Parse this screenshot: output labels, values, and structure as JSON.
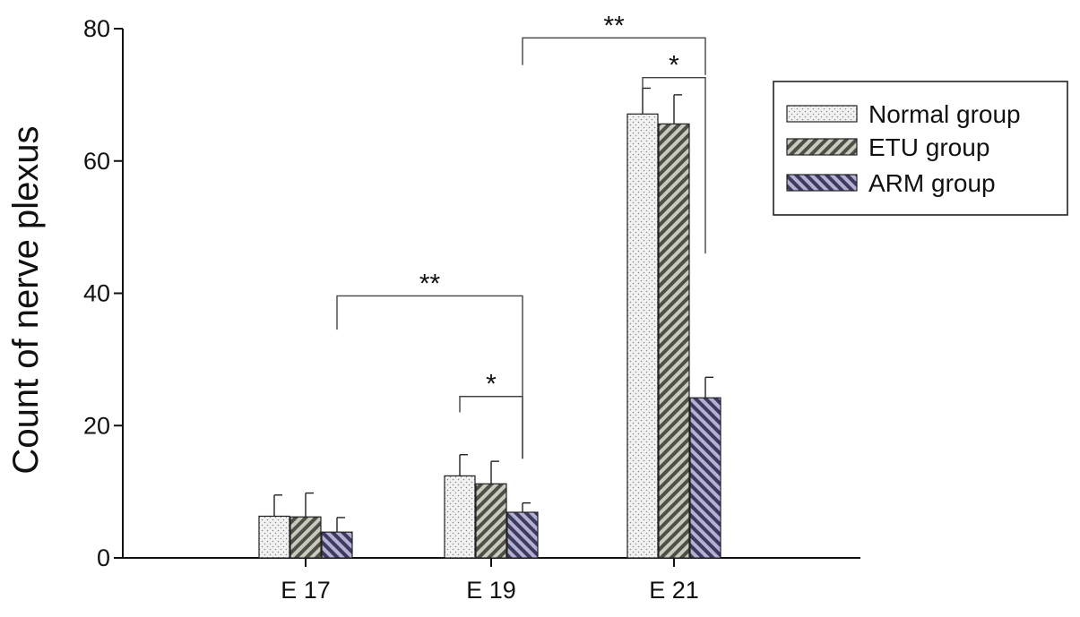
{
  "chart_data": {
    "type": "bar",
    "ylabel": "Count of nerve plexus",
    "xlabel": "",
    "ylim": [
      0,
      80
    ],
    "yticks": [
      "0",
      "20",
      "40",
      "60",
      "80"
    ],
    "categories": [
      "E 17",
      "E 19",
      "E 21"
    ],
    "series": [
      {
        "name": "Normal group",
        "pattern": "dots",
        "color": "#efefef",
        "values": [
          6.3,
          12.4,
          67.1
        ],
        "errors": [
          3.2,
          3.2,
          3.9
        ]
      },
      {
        "name": "ETU group",
        "pattern": "diagonal-right",
        "color": "#9a9a8c",
        "values": [
          6.2,
          11.2,
          65.6
        ],
        "errors": [
          3.6,
          3.4,
          4.4
        ]
      },
      {
        "name": "ARM group",
        "pattern": "diagonal-left",
        "color": "#7d79a3",
        "values": [
          3.9,
          6.9,
          24.2
        ],
        "errors": [
          2.2,
          1.4,
          3.1
        ]
      }
    ],
    "legend_position": "right",
    "significance": [
      {
        "label": "**",
        "from": [
          0,
          2
        ],
        "to": [
          1,
          2
        ],
        "level": 39.6,
        "left_drop": 34.5,
        "right_drop": 15
      },
      {
        "label": "*",
        "from": [
          1,
          0
        ],
        "to": [
          1,
          2
        ],
        "level": 24.4,
        "left_drop": 22,
        "right_drop": 15
      },
      {
        "label": "**",
        "from": [
          1,
          2
        ],
        "to": [
          2,
          2
        ],
        "level": 78.6,
        "left_drop": 74.5,
        "right_drop": 73
      },
      {
        "label": "*",
        "from": [
          2,
          0
        ],
        "to": [
          2,
          2
        ],
        "level": 72.6,
        "left_drop": 71,
        "right_drop": 46
      }
    ]
  }
}
